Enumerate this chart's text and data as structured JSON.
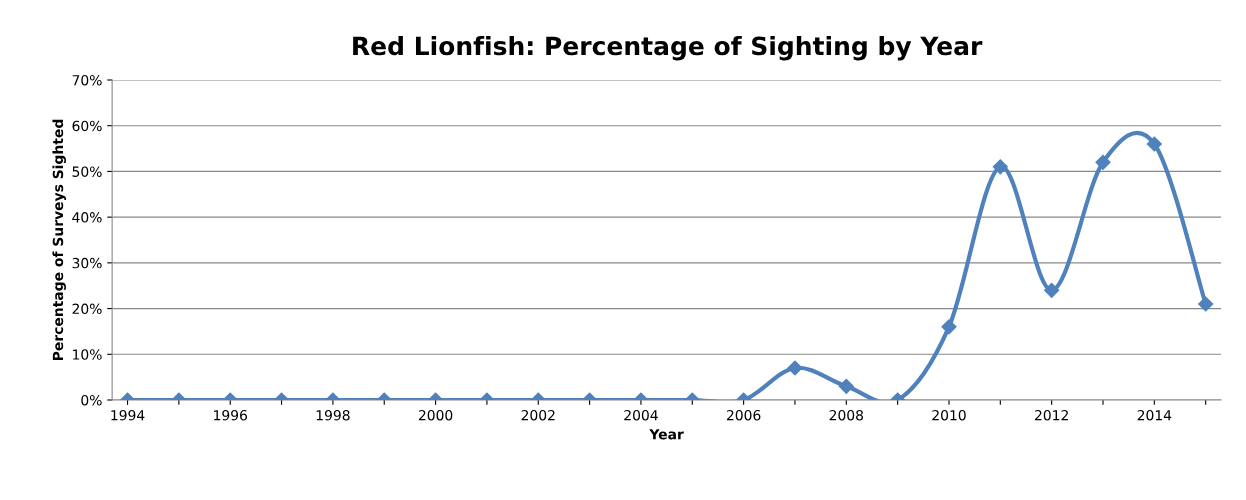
{
  "chart_data": {
    "type": "line",
    "title": "Red Lionfish: Percentage of Sighting by Year",
    "xlabel": "Year",
    "ylabel": "Percentage of Surveys Sighted",
    "categories": [
      "1994",
      null,
      "1996",
      null,
      "1998",
      null,
      "2000",
      null,
      "2002",
      null,
      "2004",
      null,
      "2006",
      null,
      "2008",
      null,
      "2010",
      null,
      "2012",
      null,
      "2014",
      null
    ],
    "series": [
      {
        "color": "#4f81bd",
        "values": [
          0,
          0,
          0,
          0,
          0,
          0,
          0,
          0,
          0,
          0,
          0,
          0,
          0,
          7,
          3,
          0,
          16,
          51,
          24,
          52,
          56,
          21
        ]
      }
    ],
    "ylim": [
      0,
      70
    ],
    "yticks": [
      {
        "value": 0,
        "label": "0%"
      },
      {
        "value": 10,
        "label": "10%"
      },
      {
        "value": 20,
        "label": "20%"
      },
      {
        "value": 30,
        "label": "30%"
      },
      {
        "value": 40,
        "label": "40%"
      },
      {
        "value": 50,
        "label": "50%"
      },
      {
        "value": 60,
        "label": "60%"
      },
      {
        "value": 70,
        "label": "70%"
      }
    ],
    "grid": "y",
    "marker": "diamond",
    "line_style": "solid",
    "legend": false
  }
}
